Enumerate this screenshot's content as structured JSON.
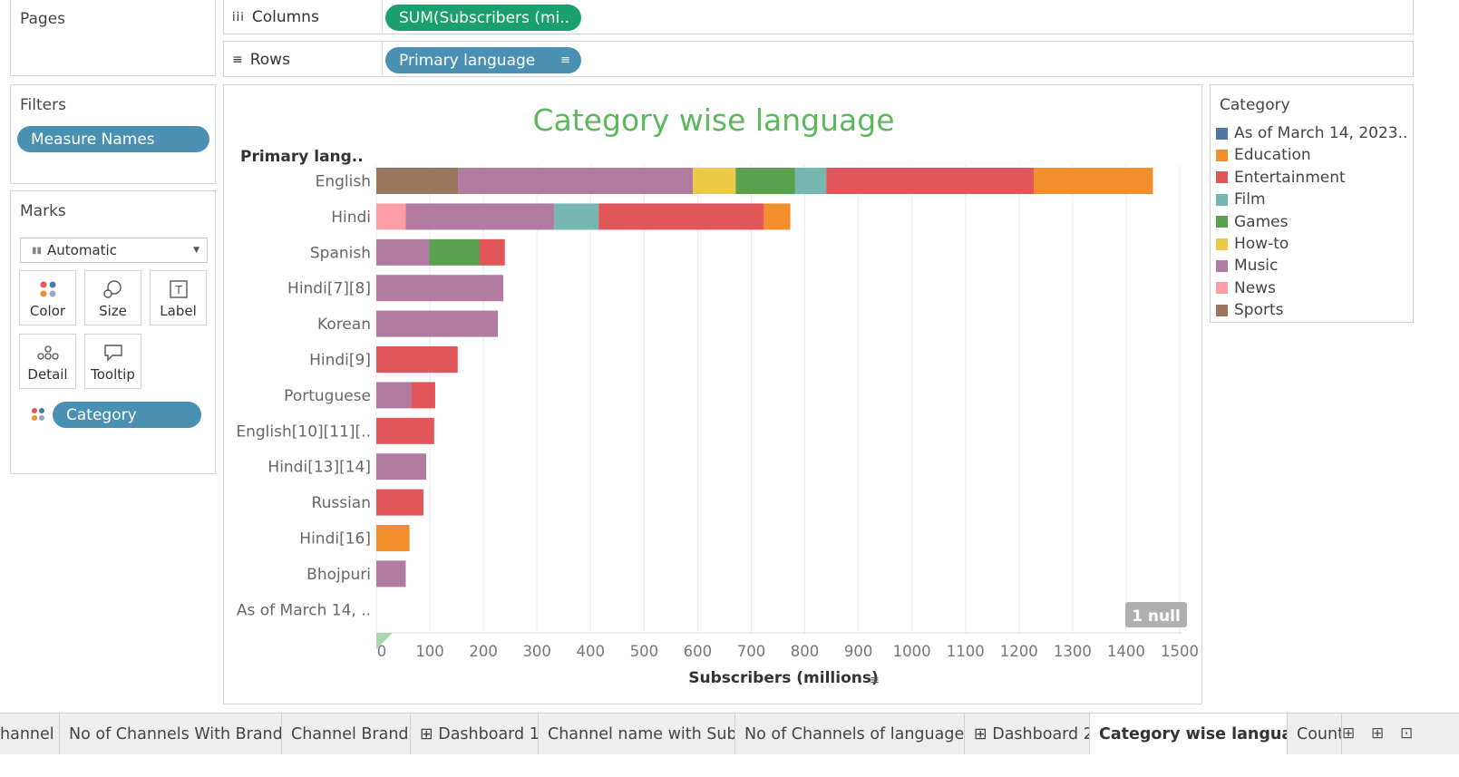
{
  "pages": {
    "title": "Pages"
  },
  "columns": {
    "label": "Columns",
    "pill": "SUM(Subscribers (mi.."
  },
  "rows": {
    "label": "Rows",
    "pill": "Primary language"
  },
  "filters": {
    "title": "Filters",
    "pill": "Measure Names"
  },
  "marks": {
    "title": "Marks",
    "mark_type": "Automatic",
    "buttons": [
      {
        "label": "Color",
        "icon": "color-icon"
      },
      {
        "label": "Size",
        "icon": "size-icon"
      },
      {
        "label": "Label",
        "icon": "label-icon"
      },
      {
        "label": "Detail",
        "icon": "detail-icon"
      },
      {
        "label": "Tooltip",
        "icon": "tooltip-icon"
      }
    ],
    "category_pill": "Category"
  },
  "legend": {
    "title": "Category",
    "items": [
      {
        "label": "As of March 14, 2023..",
        "color": "#4e79a7"
      },
      {
        "label": "Education",
        "color": "#f28e2b"
      },
      {
        "label": "Entertainment",
        "color": "#e15759"
      },
      {
        "label": "Film",
        "color": "#76b7b2"
      },
      {
        "label": "Games",
        "color": "#59a14f"
      },
      {
        "label": "How-to",
        "color": "#edc948"
      },
      {
        "label": "Music",
        "color": "#b07aa1"
      },
      {
        "label": "News",
        "color": "#ff9da7"
      },
      {
        "label": "Sports",
        "color": "#9c755f"
      }
    ]
  },
  "null_badge": "1 null",
  "chart_data": {
    "type": "bar",
    "orientation": "horizontal-stacked",
    "title": "Category wise language",
    "row_header": "Primary lang..",
    "xlabel": "Subscribers (millions)",
    "xlim": [
      0,
      1500
    ],
    "xticks": [
      0,
      100,
      200,
      300,
      400,
      500,
      600,
      700,
      800,
      900,
      1000,
      1100,
      1200,
      1300,
      1400,
      1500
    ],
    "grid": true,
    "title_color": "#5cb85c",
    "categories": [
      "English",
      "Hindi",
      "Spanish",
      "Hindi[7][8]",
      "Korean",
      "Hindi[9]",
      "Portuguese",
      "English[10][11][..",
      "Hindi[13][14]",
      "Russian",
      "Hindi[16]",
      "Bhojpuri",
      "As of March 14, .."
    ],
    "series": [
      {
        "name": "Sports",
        "color": "#9c755f",
        "values": [
          153,
          0,
          0,
          0,
          0,
          0,
          0,
          0,
          0,
          0,
          0,
          0,
          0
        ]
      },
      {
        "name": "News",
        "color": "#ff9da7",
        "values": [
          0,
          55,
          0,
          0,
          0,
          0,
          0,
          0,
          0,
          0,
          0,
          0,
          0
        ]
      },
      {
        "name": "Music",
        "color": "#b07aa1",
        "values": [
          438,
          277,
          99,
          237,
          227,
          0,
          65,
          0,
          93,
          0,
          0,
          55,
          0
        ]
      },
      {
        "name": "How-to",
        "color": "#edc948",
        "values": [
          80,
          0,
          0,
          0,
          0,
          0,
          0,
          0,
          0,
          0,
          0,
          0,
          0
        ]
      },
      {
        "name": "Games",
        "color": "#59a14f",
        "values": [
          111,
          0,
          94,
          0,
          0,
          0,
          0,
          0,
          0,
          0,
          0,
          0,
          0
        ]
      },
      {
        "name": "Film",
        "color": "#76b7b2",
        "values": [
          58,
          83,
          0,
          0,
          0,
          0,
          0,
          0,
          0,
          0,
          0,
          0,
          0
        ]
      },
      {
        "name": "Entertainment",
        "color": "#e15759",
        "values": [
          388,
          309,
          47,
          0,
          0,
          152,
          45,
          108,
          0,
          88,
          0,
          0,
          0
        ]
      },
      {
        "name": "Education",
        "color": "#f28e2b",
        "values": [
          222,
          49,
          0,
          0,
          0,
          0,
          0,
          0,
          0,
          0,
          62,
          0,
          0
        ]
      }
    ]
  },
  "tabs": [
    {
      "label": "hannel",
      "active": false
    },
    {
      "label": "No of Channels With Brand",
      "active": false
    },
    {
      "label": "Channel Brand",
      "active": false
    },
    {
      "label": "⊞ Dashboard 1",
      "active": false
    },
    {
      "label": "Channel name with Sub",
      "active": false
    },
    {
      "label": "No of Channels of language",
      "active": false
    },
    {
      "label": "⊞ Dashboard 2",
      "active": false
    },
    {
      "label": "Category wise language",
      "active": true
    },
    {
      "label": "Count",
      "active": false
    }
  ]
}
